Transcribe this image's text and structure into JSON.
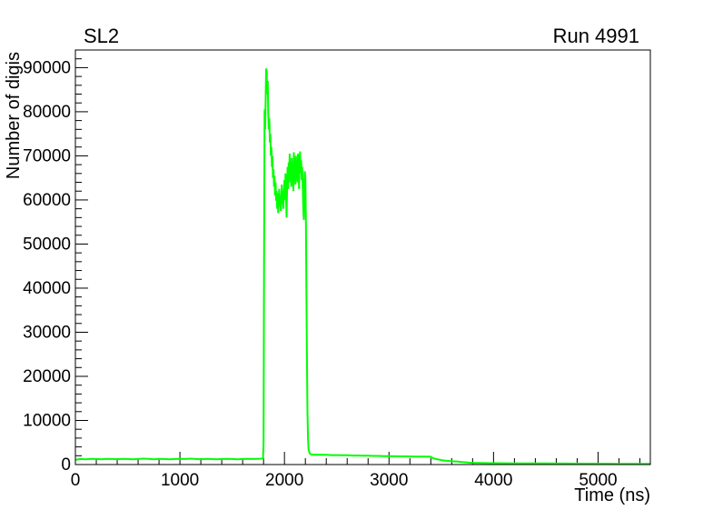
{
  "page": {
    "background": "#ffffff"
  },
  "header": {
    "title": "SL2",
    "run_label": "Run 4991"
  },
  "chart_data": {
    "type": "line",
    "title": "SL2",
    "corner_label": "Run 4991",
    "xlabel": "Time (ns)",
    "ylabel": "Number of digis",
    "xlim": [
      0,
      5500
    ],
    "ylim": [
      0,
      94000
    ],
    "x_major_ticks": [
      0,
      1000,
      2000,
      3000,
      4000,
      5000
    ],
    "x_minor_step": 200,
    "y_major_ticks": [
      0,
      10000,
      20000,
      30000,
      40000,
      50000,
      60000,
      70000,
      80000,
      90000
    ],
    "y_minor_step": 2000,
    "grid": false,
    "legend_position": "none",
    "line_color": "#00ff00",
    "axis_color": "#000000",
    "series": [
      {
        "name": "number-of-digis-vs-time",
        "x": [
          0,
          50,
          100,
          150,
          200,
          250,
          300,
          350,
          400,
          450,
          500,
          550,
          600,
          650,
          700,
          750,
          800,
          850,
          900,
          950,
          1000,
          1050,
          1100,
          1150,
          1200,
          1250,
          1300,
          1350,
          1400,
          1450,
          1500,
          1550,
          1600,
          1650,
          1700,
          1750,
          1780,
          1795,
          1800,
          1805,
          1810,
          1815,
          1820,
          1825,
          1830,
          1835,
          1840,
          1845,
          1850,
          1855,
          1860,
          1865,
          1870,
          1875,
          1880,
          1885,
          1890,
          1895,
          1900,
          1905,
          1910,
          1915,
          1920,
          1925,
          1930,
          1935,
          1940,
          1945,
          1950,
          1955,
          1960,
          1965,
          1970,
          1975,
          1980,
          1985,
          1990,
          1995,
          2000,
          2005,
          2010,
          2015,
          2020,
          2025,
          2030,
          2035,
          2040,
          2045,
          2050,
          2055,
          2060,
          2065,
          2070,
          2075,
          2080,
          2085,
          2090,
          2095,
          2100,
          2105,
          2110,
          2115,
          2120,
          2125,
          2130,
          2135,
          2140,
          2145,
          2150,
          2155,
          2160,
          2165,
          2170,
          2175,
          2180,
          2185,
          2190,
          2195,
          2200,
          2205,
          2210,
          2215,
          2220,
          2225,
          2230,
          2240,
          2250,
          2260,
          2300,
          2350,
          2400,
          2450,
          2500,
          2550,
          2600,
          2650,
          2700,
          2750,
          2800,
          2850,
          2900,
          2950,
          3000,
          3050,
          3100,
          3150,
          3200,
          3250,
          3300,
          3350,
          3400,
          3420,
          3450,
          3500,
          3550,
          3600,
          3650,
          3700,
          3750,
          3800,
          3850,
          3900,
          4000,
          4100,
          4200,
          4300,
          4400,
          4500,
          4600,
          4700,
          4800,
          4900,
          5000,
          5100,
          5200,
          5300,
          5400,
          5500
        ],
        "y": [
          1100,
          1250,
          1200,
          1300,
          1250,
          1200,
          1300,
          1250,
          1200,
          1300,
          1250,
          1200,
          1250,
          1350,
          1300,
          1200,
          1300,
          1250,
          1200,
          1250,
          1300,
          1250,
          1350,
          1250,
          1200,
          1300,
          1250,
          1200,
          1250,
          1300,
          1250,
          1200,
          1250,
          1300,
          1250,
          1300,
          1350,
          1500,
          5000,
          45000,
          80500,
          76000,
          83000,
          89800,
          89300,
          84000,
          87000,
          80000,
          76000,
          78500,
          73000,
          75000,
          70000,
          72000,
          67500,
          70000,
          65000,
          67000,
          63000,
          65500,
          61000,
          64000,
          59800,
          62000,
          58000,
          61500,
          57000,
          60000,
          62500,
          58500,
          61000,
          57500,
          60500,
          63500,
          59000,
          62000,
          58000,
          61500,
          64500,
          60000,
          66000,
          61500,
          56000,
          63000,
          67500,
          62500,
          68500,
          64000,
          70500,
          65000,
          68000,
          63000,
          69500,
          64500,
          67000,
          62000,
          70800,
          66000,
          68500,
          63500,
          70000,
          65500,
          68000,
          64000,
          70500,
          66500,
          62500,
          68500,
          71000,
          66000,
          69000,
          64500,
          67500,
          63000,
          58000,
          55500,
          64000,
          66500,
          65000,
          55000,
          38000,
          25000,
          12000,
          6000,
          3500,
          2600,
          2350,
          2250,
          2250,
          2200,
          2200,
          2150,
          2150,
          2100,
          2100,
          2050,
          2050,
          2000,
          2000,
          1950,
          1950,
          1900,
          1900,
          1880,
          1860,
          1850,
          1830,
          1820,
          1800,
          1800,
          1780,
          1450,
          1250,
          1000,
          850,
          750,
          700,
          550,
          450,
          380,
          350,
          330,
          300,
          280,
          270,
          260,
          250,
          240,
          230,
          220,
          210,
          200,
          190,
          180,
          170,
          160,
          150,
          140
        ]
      }
    ]
  }
}
